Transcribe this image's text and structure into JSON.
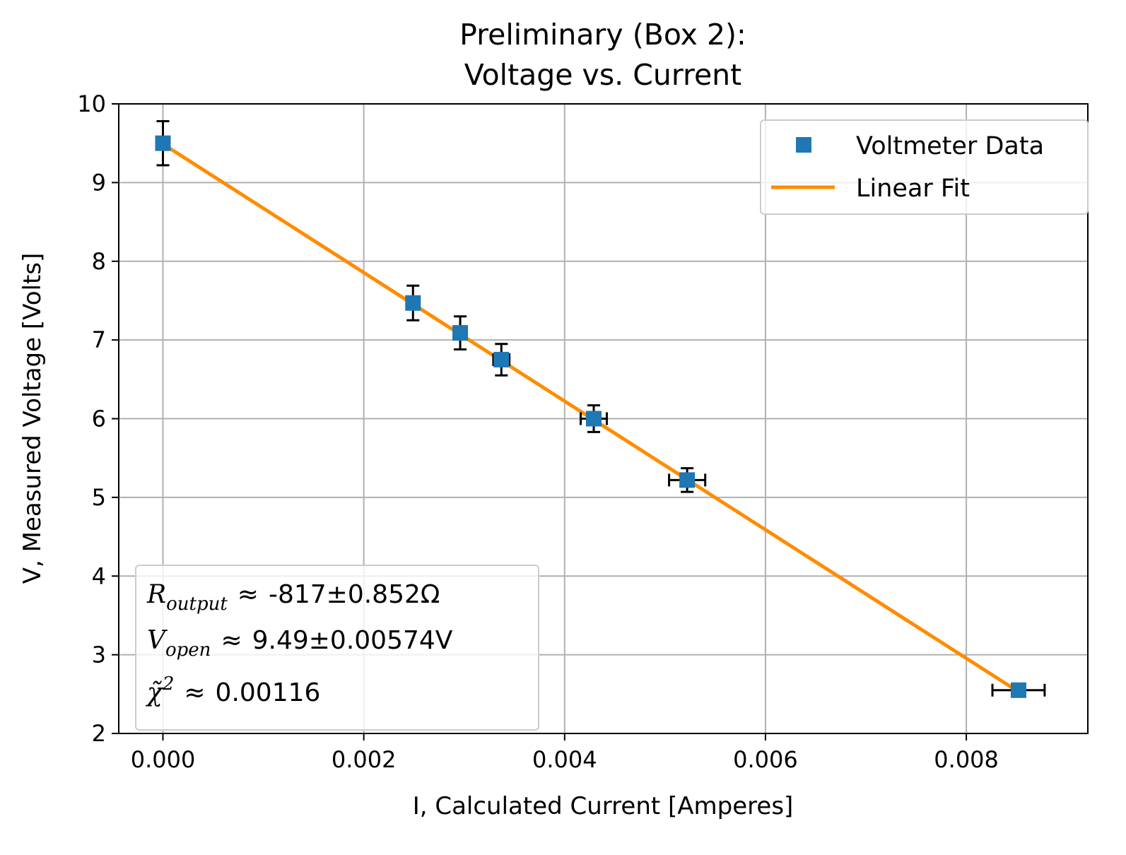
{
  "chart_data": {
    "type": "scatter",
    "title_lines": [
      "Preliminary (Box 2):",
      "Voltage vs. Current"
    ],
    "xlabel": "I, Calculated Current [Amperes]",
    "ylabel": "V, Measured Voltage [Volts]",
    "xlim": [
      -0.00044,
      0.00921
    ],
    "ylim": [
      2,
      10
    ],
    "xticks": [
      0.0,
      0.002,
      0.004,
      0.006,
      0.008
    ],
    "xtick_labels": [
      "0.000",
      "0.002",
      "0.004",
      "0.006",
      "0.008"
    ],
    "yticks": [
      2,
      3,
      4,
      5,
      6,
      7,
      8,
      9,
      10
    ],
    "ytick_labels": [
      "2",
      "3",
      "4",
      "5",
      "6",
      "7",
      "8",
      "9",
      "10"
    ],
    "grid": true,
    "legend_position": "top-right",
    "series": [
      {
        "name": "Voltmeter Data",
        "kind": "points",
        "marker": "square",
        "color": "#1f77b4",
        "x": [
          0.0,
          0.00249,
          0.00296,
          0.00337,
          0.00429,
          0.00522,
          0.00852
        ],
        "y": [
          9.5,
          7.47,
          7.09,
          6.75,
          6.0,
          5.22,
          2.55
        ],
        "y_err": [
          0.28,
          0.22,
          0.21,
          0.2,
          0.17,
          0.15,
          0.02
        ],
        "x_err": [
          2e-05,
          4e-05,
          5e-05,
          8e-05,
          0.00013,
          0.00018,
          0.00026
        ],
        "error_color": "#000000"
      },
      {
        "name": "Linear Fit",
        "kind": "line",
        "color": "#ff8c00",
        "x": [
          0.0,
          0.00852
        ],
        "y": [
          9.49,
          2.53
        ]
      }
    ],
    "annotations": [
      {
        "symbol": "R",
        "subscript": "output",
        "approx": "≈",
        "value": "-817±0.852Ω"
      },
      {
        "symbol": "V",
        "subscript": "open",
        "approx": "≈",
        "value": "9.49±0.00574V"
      },
      {
        "symbol": "χ̃",
        "superscript": "2",
        "approx": "≈",
        "value": "0.00116"
      }
    ]
  }
}
